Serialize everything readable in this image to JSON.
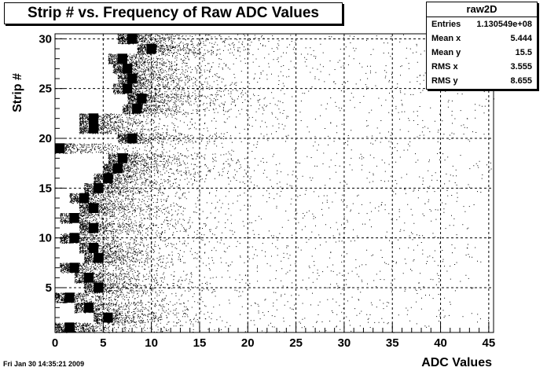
{
  "chart_data": {
    "type": "heatmap",
    "title": "Strip # vs. Frequency of Raw ADC Values",
    "xlabel": "ADC Values",
    "ylabel": "Strip #",
    "xlim": [
      0,
      45.5
    ],
    "ylim": [
      0.5,
      30.5
    ],
    "x_ticks": [
      0,
      5,
      10,
      15,
      20,
      25,
      30,
      35,
      40,
      45
    ],
    "y_ticks": [
      5,
      10,
      15,
      20,
      25,
      30
    ],
    "grid": true,
    "draw_style": "scatter density (ROOT TH2 default)",
    "pedestal_peak_by_strip": [
      {
        "strip": 1,
        "x": 1.5
      },
      {
        "strip": 2,
        "x": 5.5
      },
      {
        "strip": 3,
        "x": 3.5
      },
      {
        "strip": 4,
        "x": 1.5
      },
      {
        "strip": 5,
        "x": 4.5
      },
      {
        "strip": 6,
        "x": 3.5
      },
      {
        "strip": 7,
        "x": 2.0
      },
      {
        "strip": 8,
        "x": 4.5
      },
      {
        "strip": 9,
        "x": 4.0
      },
      {
        "strip": 10,
        "x": 2.0
      },
      {
        "strip": 11,
        "x": 4.0
      },
      {
        "strip": 12,
        "x": 2.0
      },
      {
        "strip": 13,
        "x": 4.0
      },
      {
        "strip": 14,
        "x": 3.0
      },
      {
        "strip": 15,
        "x": 4.5
      },
      {
        "strip": 16,
        "x": 5.5
      },
      {
        "strip": 17,
        "x": 6.5
      },
      {
        "strip": 18,
        "x": 7.0
      },
      {
        "strip": 19,
        "x": 0.5
      },
      {
        "strip": 20,
        "x": 8.0
      },
      {
        "strip": 21,
        "x": 4.0
      },
      {
        "strip": 22,
        "x": 4.0
      },
      {
        "strip": 23,
        "x": 8.5
      },
      {
        "strip": 24,
        "x": 9.0
      },
      {
        "strip": 25,
        "x": 7.5
      },
      {
        "strip": 26,
        "x": 8.0
      },
      {
        "strip": 27,
        "x": 7.5
      },
      {
        "strip": 28,
        "x": 7.0
      },
      {
        "strip": 29,
        "x": 10.0
      },
      {
        "strip": 30,
        "x": 8.0
      }
    ]
  },
  "stats_box": {
    "name": "raw2D",
    "rows": [
      {
        "label": "Entries",
        "value": "1.130549e+08"
      },
      {
        "label": "Mean x",
        "value": "5.444"
      },
      {
        "label": "Mean y",
        "value": "15.5"
      },
      {
        "label": "RMS x",
        "value": "3.555"
      },
      {
        "label": "RMS y",
        "value": "8.655"
      }
    ]
  },
  "footer_timestamp": "Fri Jan 30 14:35:21 2009"
}
